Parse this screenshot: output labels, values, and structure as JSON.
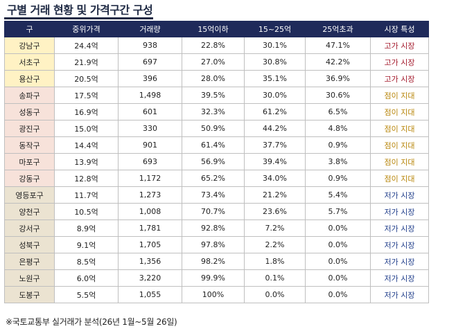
{
  "title": "구별 거래 현황 및 가격구간 구성",
  "headers": [
    "구",
    "중위가격",
    "거래량",
    "15억이하",
    "15~25억",
    "25억초과",
    "시장 특성"
  ],
  "rows": [
    {
      "district": "강남구",
      "median": "24.4억",
      "volume": "938",
      "under15": "22.8%",
      "r15_25": "30.1%",
      "over25": "47.1%",
      "market": "고가 시장",
      "tier": "high"
    },
    {
      "district": "서초구",
      "median": "21.9억",
      "volume": "697",
      "under15": "27.0%",
      "r15_25": "30.8%",
      "over25": "42.2%",
      "market": "고가 시장",
      "tier": "high"
    },
    {
      "district": "용산구",
      "median": "20.5억",
      "volume": "396",
      "under15": "28.0%",
      "r15_25": "35.1%",
      "over25": "36.9%",
      "market": "고가 시장",
      "tier": "high"
    },
    {
      "district": "송파구",
      "median": "17.5억",
      "volume": "1,498",
      "under15": "39.5%",
      "r15_25": "30.0%",
      "over25": "30.6%",
      "market": "점이 지대",
      "tier": "mid"
    },
    {
      "district": "성동구",
      "median": "16.9억",
      "volume": "601",
      "under15": "32.3%",
      "r15_25": "61.2%",
      "over25": "6.5%",
      "market": "점이 지대",
      "tier": "mid"
    },
    {
      "district": "광진구",
      "median": "15.0억",
      "volume": "330",
      "under15": "50.9%",
      "r15_25": "44.2%",
      "over25": "4.8%",
      "market": "점이 지대",
      "tier": "mid"
    },
    {
      "district": "동작구",
      "median": "14.4억",
      "volume": "901",
      "under15": "61.4%",
      "r15_25": "37.7%",
      "over25": "0.9%",
      "market": "점이 지대",
      "tier": "mid"
    },
    {
      "district": "마포구",
      "median": "13.9억",
      "volume": "693",
      "under15": "56.9%",
      "r15_25": "39.4%",
      "over25": "3.8%",
      "market": "점이 지대",
      "tier": "mid"
    },
    {
      "district": "강동구",
      "median": "12.8억",
      "volume": "1,172",
      "under15": "65.2%",
      "r15_25": "34.0%",
      "over25": "0.9%",
      "market": "점이 지대",
      "tier": "mid"
    },
    {
      "district": "영등포구",
      "median": "11.7억",
      "volume": "1,273",
      "under15": "73.4%",
      "r15_25": "21.2%",
      "over25": "5.4%",
      "market": "저가 시장",
      "tier": "low"
    },
    {
      "district": "양천구",
      "median": "10.5억",
      "volume": "1,008",
      "under15": "70.7%",
      "r15_25": "23.6%",
      "over25": "5.7%",
      "market": "저가 시장",
      "tier": "low"
    },
    {
      "district": "강서구",
      "median": "8.9억",
      "volume": "1,781",
      "under15": "92.8%",
      "r15_25": "7.2%",
      "over25": "0.0%",
      "market": "저가 시장",
      "tier": "low"
    },
    {
      "district": "성북구",
      "median": "9.1억",
      "volume": "1,705",
      "under15": "97.8%",
      "r15_25": "2.2%",
      "over25": "0.0%",
      "market": "저가 시장",
      "tier": "low"
    },
    {
      "district": "은평구",
      "median": "8.5억",
      "volume": "1,356",
      "under15": "98.2%",
      "r15_25": "1.8%",
      "over25": "0.0%",
      "market": "저가 시장",
      "tier": "low"
    },
    {
      "district": "노원구",
      "median": "6.0억",
      "volume": "3,220",
      "under15": "99.9%",
      "r15_25": "0.1%",
      "over25": "0.0%",
      "market": "저가 시장",
      "tier": "low"
    },
    {
      "district": "도봉구",
      "median": "5.5억",
      "volume": "1,055",
      "under15": "100%",
      "r15_25": "0.0%",
      "over25": "0.0%",
      "market": "저가 시장",
      "tier": "low"
    }
  ],
  "colors": {
    "header_bg": "#1f2a5a",
    "high_text": "#a3192b",
    "mid_text": "#b8860b",
    "low_text": "#1f3d8a",
    "high_bg": "#fff2c4",
    "mid_bg": "#f7e2da",
    "low_bg": "#ebe3d1"
  },
  "footnote": "※국토교통부 실거래가 분석(26년 1월~5월 26일)"
}
